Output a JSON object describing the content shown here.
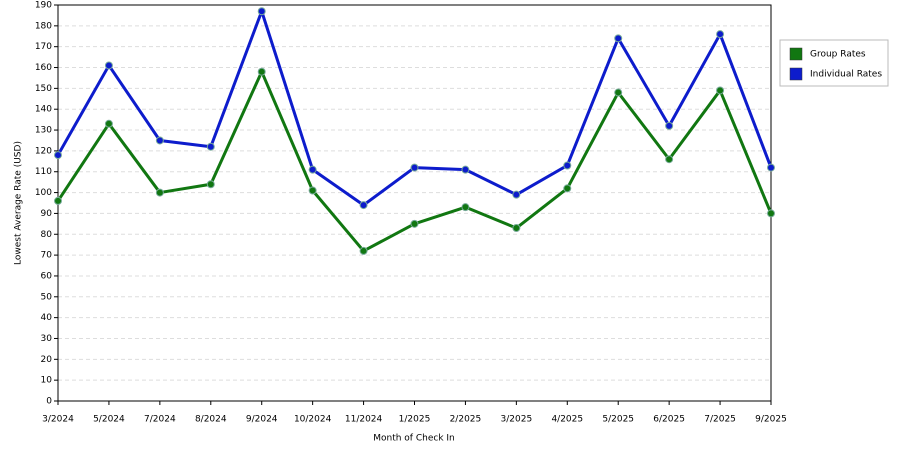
{
  "chart_data": {
    "type": "line",
    "x_label": "Month of Check In",
    "y_label": "Lowest Average Rate (USD)",
    "categories": [
      "3/2024",
      "5/2024",
      "7/2024",
      "8/2024",
      "9/2024",
      "10/2024",
      "11/2024",
      "1/2025",
      "2/2025",
      "3/2025",
      "4/2025",
      "5/2025",
      "6/2025",
      "7/2025",
      "9/2025"
    ],
    "series": [
      {
        "name": "Group Rates",
        "color": "#117711",
        "values": [
          96,
          133,
          100,
          104,
          158,
          101,
          72,
          85,
          93,
          83,
          102,
          148,
          116,
          149,
          90
        ]
      },
      {
        "name": "Individual Rates",
        "color": "#0d1ccc",
        "values": [
          118,
          161,
          125,
          122,
          187,
          111,
          94,
          112,
          111,
          99,
          113,
          174,
          132,
          176,
          112
        ]
      }
    ],
    "ylim": [
      0,
      190
    ],
    "yticks": [
      0,
      10,
      20,
      30,
      40,
      50,
      60,
      70,
      80,
      90,
      100,
      110,
      120,
      130,
      140,
      150,
      160,
      170,
      180,
      190
    ],
    "grid": true,
    "legend": "right"
  }
}
